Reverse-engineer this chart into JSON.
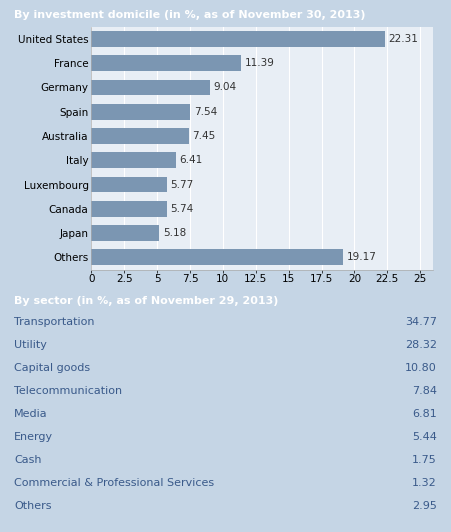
{
  "title1": "By investment domicile (in %, as of November 30, 2013)",
  "title2": "By sector (in %, as of November 29, 2013)",
  "bar_categories": [
    "United States",
    "France",
    "Germany",
    "Spain",
    "Australia",
    "Italy",
    "Luxembourg",
    "Canada",
    "Japan",
    "Others"
  ],
  "bar_values": [
    22.31,
    11.39,
    9.04,
    7.54,
    7.45,
    6.41,
    5.77,
    5.74,
    5.18,
    19.17
  ],
  "bar_color": "#7b96b2",
  "bar_label_color": "#333333",
  "chart_inner_bg": "#e8eef5",
  "chart_outer_bg": "#dde6f0",
  "xlim": [
    0,
    26
  ],
  "xticks": [
    0,
    2.5,
    5,
    7.5,
    10,
    12.5,
    15,
    17.5,
    20,
    22.5,
    25
  ],
  "xtick_labels": [
    "0",
    "2.5",
    "5",
    "7.5",
    "10",
    "12.5",
    "15",
    "17.5",
    "20",
    "22.5",
    "25"
  ],
  "sector_labels": [
    "Transportation",
    "Utility",
    "Capital goods",
    "Telecommunication",
    "Media",
    "Energy",
    "Cash",
    "Commercial & Professional Services",
    "Others"
  ],
  "sector_values": [
    34.77,
    28.32,
    10.8,
    7.84,
    6.81,
    5.44,
    1.75,
    1.32,
    2.95
  ],
  "header_bg": "#7b96b2",
  "header_text_color": "#ffffff",
  "outer_bg": "#c5d5e5",
  "panel_bg": "#dde6f0",
  "table_row_odd": "#f5f7fa",
  "table_row_even": "#e8eef5",
  "table_text_color": "#3a5a8a",
  "title_fontsize": 8.0,
  "bar_fontsize": 7.5,
  "sector_fontsize": 8.0,
  "tick_fontsize": 7.5
}
